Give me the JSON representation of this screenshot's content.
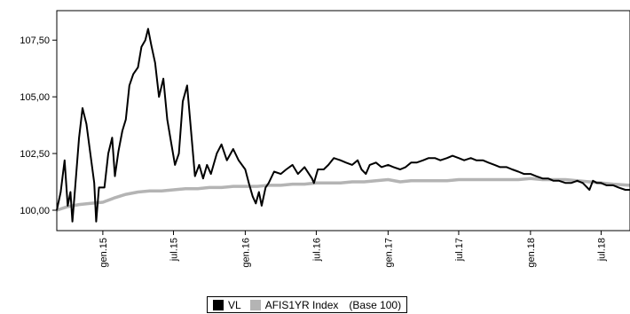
{
  "chart_data": {
    "type": "line",
    "title": "",
    "xlabel": "",
    "ylabel": "",
    "ylim": [
      99.1,
      108.8
    ],
    "y_ticks": [
      100.0,
      102.5,
      105.0,
      107.5
    ],
    "y_tick_labels": [
      "100,00",
      "102,50",
      "105,00",
      "107,50"
    ],
    "x_range": [
      "2014-09-05",
      "2018-09-13"
    ],
    "x_ticks": [
      {
        "date": "2015-01-01",
        "label": "gen.15"
      },
      {
        "date": "2015-07-01",
        "label": "jul.15"
      },
      {
        "date": "2016-01-01",
        "label": "gen.16"
      },
      {
        "date": "2016-07-01",
        "label": "jul.16"
      },
      {
        "date": "2017-01-01",
        "label": "gen.17"
      },
      {
        "date": "2017-07-01",
        "label": "jul.17"
      },
      {
        "date": "2018-01-01",
        "label": "gen.18"
      },
      {
        "date": "2018-07-01",
        "label": "jul.18"
      }
    ],
    "grid": false,
    "legend_position": "bottom",
    "legend_note": "(Base 100)",
    "series": [
      {
        "name": "VL",
        "color": "#000000",
        "points": [
          [
            "2014-09-05",
            100.0
          ],
          [
            "2014-09-15",
            100.8
          ],
          [
            "2014-09-25",
            102.2
          ],
          [
            "2014-10-03",
            100.2
          ],
          [
            "2014-10-10",
            100.8
          ],
          [
            "2014-10-15",
            99.5
          ],
          [
            "2014-10-22",
            101.0
          ],
          [
            "2014-11-01",
            103.2
          ],
          [
            "2014-11-10",
            104.5
          ],
          [
            "2014-11-20",
            103.8
          ],
          [
            "2014-11-30",
            102.5
          ],
          [
            "2014-12-10",
            101.2
          ],
          [
            "2014-12-15",
            99.5
          ],
          [
            "2014-12-22",
            101.0
          ],
          [
            "2015-01-05",
            101.0
          ],
          [
            "2015-01-15",
            102.5
          ],
          [
            "2015-01-25",
            103.2
          ],
          [
            "2015-02-01",
            101.5
          ],
          [
            "2015-02-10",
            102.6
          ],
          [
            "2015-02-20",
            103.5
          ],
          [
            "2015-03-01",
            104.0
          ],
          [
            "2015-03-10",
            105.5
          ],
          [
            "2015-03-20",
            106.0
          ],
          [
            "2015-04-01",
            106.3
          ],
          [
            "2015-04-10",
            107.2
          ],
          [
            "2015-04-20",
            107.5
          ],
          [
            "2015-04-27",
            108.0
          ],
          [
            "2015-05-05",
            107.3
          ],
          [
            "2015-05-15",
            106.5
          ],
          [
            "2015-05-25",
            105.0
          ],
          [
            "2015-06-05",
            105.8
          ],
          [
            "2015-06-15",
            104.0
          ],
          [
            "2015-06-25",
            103.0
          ],
          [
            "2015-07-05",
            102.0
          ],
          [
            "2015-07-15",
            102.5
          ],
          [
            "2015-07-25",
            104.8
          ],
          [
            "2015-08-05",
            105.5
          ],
          [
            "2015-08-15",
            103.5
          ],
          [
            "2015-08-25",
            101.5
          ],
          [
            "2015-09-05",
            102.0
          ],
          [
            "2015-09-15",
            101.4
          ],
          [
            "2015-09-25",
            102.0
          ],
          [
            "2015-10-05",
            101.6
          ],
          [
            "2015-10-20",
            102.5
          ],
          [
            "2015-11-01",
            102.9
          ],
          [
            "2015-11-15",
            102.2
          ],
          [
            "2015-12-01",
            102.7
          ],
          [
            "2015-12-15",
            102.2
          ],
          [
            "2016-01-01",
            101.8
          ],
          [
            "2016-01-10",
            101.2
          ],
          [
            "2016-01-20",
            100.6
          ],
          [
            "2016-01-28",
            100.3
          ],
          [
            "2016-02-05",
            100.8
          ],
          [
            "2016-02-12",
            100.2
          ],
          [
            "2016-02-22",
            101.0
          ],
          [
            "2016-03-01",
            101.2
          ],
          [
            "2016-03-15",
            101.7
          ],
          [
            "2016-04-01",
            101.6
          ],
          [
            "2016-04-15",
            101.8
          ],
          [
            "2016-05-01",
            102.0
          ],
          [
            "2016-05-15",
            101.6
          ],
          [
            "2016-06-01",
            101.9
          ],
          [
            "2016-06-20",
            101.4
          ],
          [
            "2016-06-25",
            101.2
          ],
          [
            "2016-07-05",
            101.8
          ],
          [
            "2016-07-20",
            101.8
          ],
          [
            "2016-08-01",
            102.0
          ],
          [
            "2016-08-15",
            102.3
          ],
          [
            "2016-09-01",
            102.2
          ],
          [
            "2016-09-15",
            102.1
          ],
          [
            "2016-10-01",
            102.0
          ],
          [
            "2016-10-15",
            102.2
          ],
          [
            "2016-10-25",
            101.8
          ],
          [
            "2016-11-05",
            101.6
          ],
          [
            "2016-11-15",
            102.0
          ],
          [
            "2016-12-01",
            102.1
          ],
          [
            "2016-12-15",
            101.9
          ],
          [
            "2017-01-01",
            102.0
          ],
          [
            "2017-01-15",
            101.9
          ],
          [
            "2017-02-01",
            101.8
          ],
          [
            "2017-02-15",
            101.9
          ],
          [
            "2017-03-01",
            102.1
          ],
          [
            "2017-03-15",
            102.1
          ],
          [
            "2017-04-01",
            102.2
          ],
          [
            "2017-04-15",
            102.3
          ],
          [
            "2017-05-01",
            102.3
          ],
          [
            "2017-05-15",
            102.2
          ],
          [
            "2017-06-01",
            102.3
          ],
          [
            "2017-06-15",
            102.4
          ],
          [
            "2017-07-01",
            102.3
          ],
          [
            "2017-07-15",
            102.2
          ],
          [
            "2017-08-01",
            102.3
          ],
          [
            "2017-08-15",
            102.2
          ],
          [
            "2017-09-01",
            102.2
          ],
          [
            "2017-09-15",
            102.1
          ],
          [
            "2017-10-01",
            102.0
          ],
          [
            "2017-10-15",
            101.9
          ],
          [
            "2017-11-01",
            101.9
          ],
          [
            "2017-11-15",
            101.8
          ],
          [
            "2017-12-01",
            101.7
          ],
          [
            "2017-12-15",
            101.6
          ],
          [
            "2018-01-01",
            101.6
          ],
          [
            "2018-01-15",
            101.5
          ],
          [
            "2018-02-01",
            101.4
          ],
          [
            "2018-02-15",
            101.4
          ],
          [
            "2018-03-01",
            101.3
          ],
          [
            "2018-03-15",
            101.3
          ],
          [
            "2018-04-01",
            101.2
          ],
          [
            "2018-04-15",
            101.2
          ],
          [
            "2018-05-01",
            101.3
          ],
          [
            "2018-05-15",
            101.2
          ],
          [
            "2018-06-01",
            100.9
          ],
          [
            "2018-06-10",
            101.3
          ],
          [
            "2018-06-20",
            101.2
          ],
          [
            "2018-07-01",
            101.2
          ],
          [
            "2018-07-15",
            101.1
          ],
          [
            "2018-08-01",
            101.1
          ],
          [
            "2018-08-15",
            101.0
          ],
          [
            "2018-09-01",
            100.9
          ],
          [
            "2018-09-13",
            100.9
          ]
        ]
      },
      {
        "name": "AFIS1YR Index",
        "color": "#b4b4b4",
        "points": [
          [
            "2014-09-05",
            100.0
          ],
          [
            "2014-10-01",
            100.15
          ],
          [
            "2014-11-01",
            100.25
          ],
          [
            "2014-12-01",
            100.3
          ],
          [
            "2015-01-01",
            100.35
          ],
          [
            "2015-02-01",
            100.55
          ],
          [
            "2015-03-01",
            100.7
          ],
          [
            "2015-04-01",
            100.8
          ],
          [
            "2015-05-01",
            100.85
          ],
          [
            "2015-06-01",
            100.85
          ],
          [
            "2015-07-01",
            100.9
          ],
          [
            "2015-08-01",
            100.95
          ],
          [
            "2015-09-01",
            100.95
          ],
          [
            "2015-10-01",
            101.0
          ],
          [
            "2015-11-01",
            101.0
          ],
          [
            "2015-12-01",
            101.05
          ],
          [
            "2016-01-01",
            101.05
          ],
          [
            "2016-02-01",
            101.05
          ],
          [
            "2016-03-01",
            101.1
          ],
          [
            "2016-04-01",
            101.1
          ],
          [
            "2016-05-01",
            101.15
          ],
          [
            "2016-06-01",
            101.15
          ],
          [
            "2016-07-01",
            101.2
          ],
          [
            "2016-08-01",
            101.2
          ],
          [
            "2016-09-01",
            101.2
          ],
          [
            "2016-10-01",
            101.25
          ],
          [
            "2016-11-01",
            101.25
          ],
          [
            "2016-12-01",
            101.3
          ],
          [
            "2017-01-01",
            101.35
          ],
          [
            "2017-02-01",
            101.25
          ],
          [
            "2017-03-01",
            101.3
          ],
          [
            "2017-04-01",
            101.3
          ],
          [
            "2017-05-01",
            101.3
          ],
          [
            "2017-06-01",
            101.3
          ],
          [
            "2017-07-01",
            101.35
          ],
          [
            "2017-08-01",
            101.35
          ],
          [
            "2017-09-01",
            101.35
          ],
          [
            "2017-10-01",
            101.35
          ],
          [
            "2017-11-01",
            101.35
          ],
          [
            "2017-12-01",
            101.35
          ],
          [
            "2018-01-01",
            101.4
          ],
          [
            "2018-02-01",
            101.35
          ],
          [
            "2018-03-01",
            101.35
          ],
          [
            "2018-04-01",
            101.35
          ],
          [
            "2018-05-01",
            101.3
          ],
          [
            "2018-06-01",
            101.25
          ],
          [
            "2018-07-01",
            101.2
          ],
          [
            "2018-08-01",
            101.15
          ],
          [
            "2018-09-13",
            101.1
          ]
        ]
      }
    ]
  }
}
